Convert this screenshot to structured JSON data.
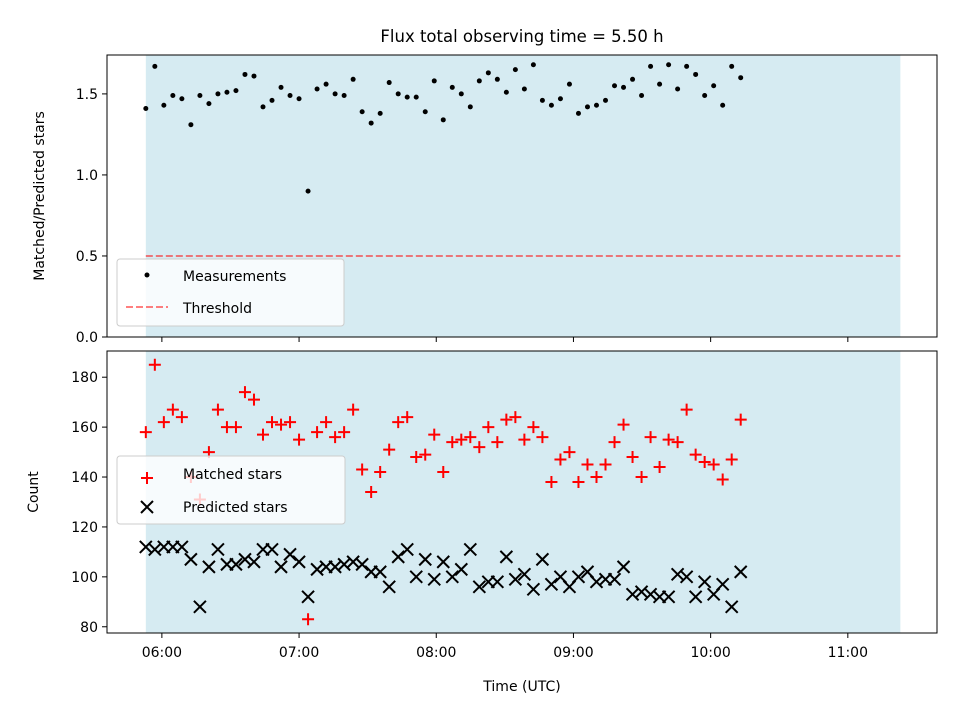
{
  "figure_title": "Flux total observing time = 5.50 h",
  "colors": {
    "shade": "#add8e6",
    "matched": "#ff0000",
    "predicted": "#000000",
    "threshold": "#ff0000",
    "measurement": "#000000"
  },
  "chart_data": [
    {
      "type": "scatter",
      "title": "Flux total observing time = 5.50 h",
      "xlabel": "",
      "ylabel": "Matched/Predicted stars",
      "ylim": [
        0,
        1.74
      ],
      "xlim_hours": [
        5.6,
        11.65
      ],
      "yticks": [
        "0.0",
        "0.5",
        "1.0",
        "1.5"
      ],
      "ytick_values": [
        0,
        0.5,
        1.0,
        1.5
      ],
      "shaded_span_hours": [
        5.883,
        11.383
      ],
      "legend_location": "lower-left",
      "series": [
        {
          "name": "Measurements",
          "x_start_hours": 5.883,
          "x_step_hours": 0.0657,
          "values": [
            1.41,
            1.67,
            1.43,
            1.49,
            1.47,
            1.31,
            1.49,
            1.44,
            1.5,
            1.51,
            1.52,
            1.62,
            1.61,
            1.42,
            1.46,
            1.54,
            1.49,
            1.47,
            0.9,
            1.53,
            1.56,
            1.5,
            1.49,
            1.59,
            1.39,
            1.32,
            1.38,
            1.57,
            1.5,
            1.48,
            1.48,
            1.39,
            1.58,
            1.34,
            1.54,
            1.5,
            1.42,
            1.58,
            1.63,
            1.59,
            1.51,
            1.65,
            1.53,
            1.68,
            1.46,
            1.43,
            1.47,
            1.56,
            1.38,
            1.42,
            1.43,
            1.46,
            1.55,
            1.54,
            1.59,
            1.49,
            1.67,
            1.56,
            1.68,
            1.53,
            1.67,
            1.62,
            1.49,
            1.55,
            1.43,
            1.67,
            1.6
          ]
        },
        {
          "name": "Threshold",
          "type": "line",
          "values": [
            0.5
          ]
        }
      ]
    },
    {
      "type": "scatter",
      "title": "",
      "xlabel": "Time (UTC)",
      "ylabel": "Count",
      "ylim": [
        77.5,
        190.5
      ],
      "xlim_hours": [
        5.6,
        11.65
      ],
      "xticks": [
        "06:00",
        "07:00",
        "08:00",
        "09:00",
        "10:00",
        "11:00"
      ],
      "xtick_hours": [
        6,
        7,
        8,
        9,
        10,
        11
      ],
      "yticks": [
        "80",
        "100",
        "120",
        "140",
        "160",
        "180"
      ],
      "ytick_values": [
        80,
        100,
        120,
        140,
        160,
        180
      ],
      "shaded_span_hours": [
        5.883,
        11.383
      ],
      "legend_location": "center-left",
      "series": [
        {
          "name": "Matched stars",
          "x_start_hours": 5.883,
          "x_step_hours": 0.0657,
          "values": [
            158,
            185,
            162,
            167,
            164,
            140,
            131,
            150,
            167,
            160,
            160,
            174,
            171,
            157,
            162,
            161,
            162,
            155,
            83,
            158,
            162,
            156,
            158,
            167,
            143,
            134,
            142,
            151,
            162,
            164,
            148,
            149,
            157,
            142,
            154,
            155,
            156,
            152,
            160,
            154,
            163,
            164,
            155,
            160,
            156,
            138,
            147,
            150,
            138,
            145,
            140,
            145,
            154,
            161,
            148,
            140,
            156,
            144,
            155,
            154,
            167,
            149,
            146,
            145,
            139,
            147,
            163
          ]
        },
        {
          "name": "Predicted stars",
          "x_start_hours": 5.883,
          "x_step_hours": 0.0657,
          "values": [
            112,
            111,
            112,
            112,
            112,
            107,
            88,
            104,
            111,
            105,
            105,
            107,
            106,
            111,
            111,
            104,
            109,
            106,
            92,
            103,
            104,
            104,
            105,
            106,
            105,
            102,
            102,
            96,
            108,
            111,
            100,
            107,
            99,
            106,
            100,
            103,
            111,
            96,
            98,
            98,
            108,
            99,
            101,
            95,
            107,
            97,
            100,
            96,
            100,
            102,
            98,
            99,
            99,
            104,
            93,
            94,
            93,
            92,
            92,
            101,
            100,
            92,
            98,
            93,
            97,
            88,
            102
          ]
        }
      ]
    }
  ]
}
